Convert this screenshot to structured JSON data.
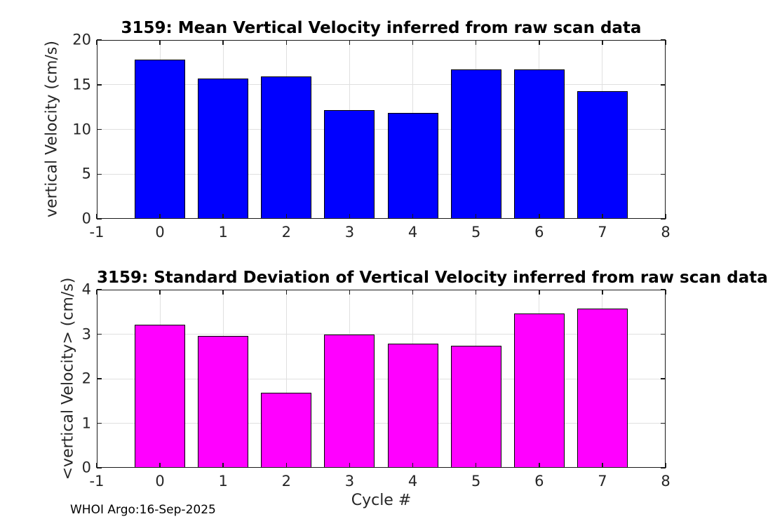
{
  "footer": {
    "text": "WHOI Argo:16-Sep-2025"
  },
  "colors": {
    "background": "#ffffff",
    "axis": "#1a1a1a",
    "grid": "#e0e0e0",
    "tick_text": "#262626",
    "title_text": "#000000",
    "mean_bar": "#0000ff",
    "std_bar": "#ff00ff",
    "bar_edge": "#000000"
  },
  "chart_data": [
    {
      "type": "bar",
      "title": "3159: Mean Vertical Velocity inferred from raw scan data",
      "xlabel": "",
      "ylabel": "vertical Velocity (cm/s)",
      "categories": [
        0,
        1,
        2,
        3,
        4,
        5,
        6,
        7
      ],
      "values": [
        17.8,
        15.7,
        15.9,
        12.15,
        11.85,
        16.7,
        16.7,
        14.3
      ],
      "bar_color": "#0000ff",
      "bar_edge_color": "#000000",
      "bar_width": 0.8,
      "xlim": [
        -1,
        8
      ],
      "ylim": [
        0,
        20
      ],
      "xticks": [
        -1,
        0,
        1,
        2,
        3,
        4,
        5,
        6,
        7,
        8
      ],
      "yticks": [
        0,
        5,
        10,
        15,
        20
      ],
      "grid": true,
      "legend_position": "none"
    },
    {
      "type": "bar",
      "title": "3159: Standard Deviation of Vertical Velocity inferred from raw scan data",
      "xlabel": "Cycle #",
      "ylabel": "<vertical Velocity> (cm/s)",
      "categories": [
        0,
        1,
        2,
        3,
        4,
        5,
        6,
        7
      ],
      "values": [
        3.22,
        2.96,
        1.69,
        2.99,
        2.79,
        2.74,
        3.47,
        3.58
      ],
      "bar_color": "#ff00ff",
      "bar_edge_color": "#000000",
      "bar_width": 0.8,
      "xlim": [
        -1,
        8
      ],
      "ylim": [
        0,
        4
      ],
      "xticks": [
        -1,
        0,
        1,
        2,
        3,
        4,
        5,
        6,
        7,
        8
      ],
      "yticks": [
        0,
        1,
        2,
        3,
        4
      ],
      "grid": true,
      "legend_position": "none"
    }
  ]
}
